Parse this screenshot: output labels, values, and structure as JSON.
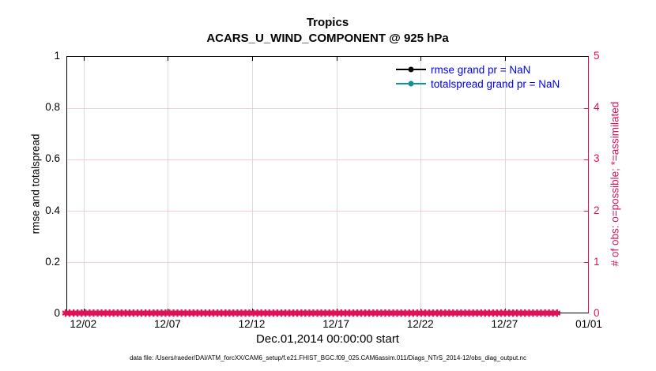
{
  "title": "Tropics",
  "subtitle": "ACARS_U_WIND_COMPONENT @ 925 hPa",
  "footer": "data file: /Users/raeder/DAI/ATM_forcXX/CAM6_setup/f.e21.FHIST_BGC.f09_025.CAM6assim.011/Diags_NTrS_2014-12/obs_diag_output.nc",
  "colors": {
    "axis_black": "#000000",
    "axis_pink": "#DE1159",
    "legend_text_blue": "#0000EE",
    "teal": "#0F9494",
    "grid_vertical_gray": "#DBDBDB",
    "grid_horizontal_pink": "#F6CBDA"
  },
  "chart_data": {
    "type": "line",
    "title": "Tropics",
    "subtitle": "ACARS_U_WIND_COMPONENT @ 925 hPa",
    "xlabel": "Dec.01,2014 00:00:00 start",
    "ylabel_left": "rmse and totalspread",
    "ylabel_right": "# of obs: o=possible; *=assimilated",
    "left_ylim": [
      0,
      1
    ],
    "right_ylim": [
      0,
      5
    ],
    "x_days_range": [
      0,
      31
    ],
    "xticks": [
      {
        "label": "12/02",
        "day": 1
      },
      {
        "label": "12/07",
        "day": 6
      },
      {
        "label": "12/12",
        "day": 11
      },
      {
        "label": "12/17",
        "day": 16
      },
      {
        "label": "12/22",
        "day": 21
      },
      {
        "label": "12/27",
        "day": 26
      },
      {
        "label": "01/01",
        "day": 31
      }
    ],
    "yticks_left": [
      "0",
      "0.2",
      "0.4",
      "0.6",
      "0.8",
      "1"
    ],
    "yticks_right": [
      "0",
      "1",
      "2",
      "3",
      "4",
      "5"
    ],
    "series": [
      {
        "name": "rmse grand pr = NaN",
        "color": "#000000",
        "values": [],
        "note": "all values NaN - no curve drawn"
      },
      {
        "name": "totalspread grand pr = NaN",
        "color": "#0F9494",
        "values": [],
        "note": "all values NaN - no curve drawn"
      }
    ],
    "obs_markers": {
      "glyph": "✱",
      "color": "#DE1159",
      "y_value": 0,
      "count": 124,
      "note": "dense asterisk markers along y=0 (right axis: 0 obs) spanning Dec 01 through Jan 01"
    },
    "grid": {
      "vertical": true,
      "horizontal": true
    },
    "legend_position": "top-right-inside"
  }
}
